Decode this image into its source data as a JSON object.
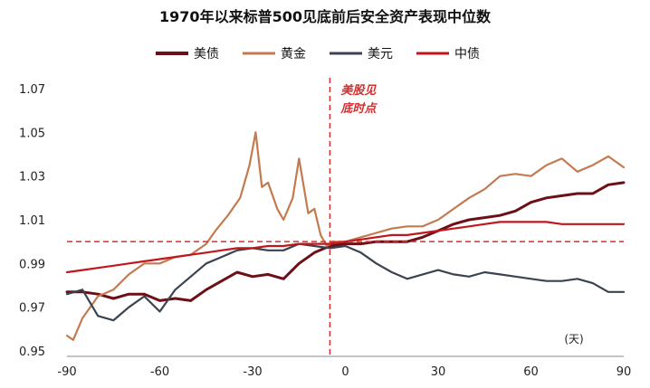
{
  "chart_data": {
    "type": "line",
    "title": "1970年以来标普500见底前后安全资产表现中位数",
    "x_tick_labels": [
      "-90",
      "-60",
      "-30",
      "0",
      "30",
      "60",
      "90"
    ],
    "y_tick_labels": [
      "0.95",
      "0.97",
      "0.99",
      "1.01",
      "1.03",
      "1.05",
      "1.07"
    ],
    "xlim": [
      -90,
      90
    ],
    "ylim": [
      0.95,
      1.07
    ],
    "annotation": {
      "line1": "美股见",
      "line2": "底时点",
      "x": -5
    },
    "reference_y": 1.0,
    "unit_label": "(天)",
    "legend_position": "top",
    "series": [
      {
        "name": "美债",
        "color": "#6d0f17",
        "x": [
          -90,
          -85,
          -80,
          -75,
          -70,
          -65,
          -60,
          -55,
          -50,
          -45,
          -40,
          -35,
          -30,
          -25,
          -20,
          -15,
          -10,
          -5,
          0,
          5,
          10,
          15,
          20,
          25,
          30,
          35,
          40,
          45,
          50,
          55,
          60,
          65,
          70,
          75,
          80,
          85,
          90
        ],
        "y": [
          0.977,
          0.977,
          0.976,
          0.974,
          0.976,
          0.976,
          0.973,
          0.974,
          0.973,
          0.978,
          0.982,
          0.986,
          0.984,
          0.985,
          0.983,
          0.99,
          0.995,
          0.998,
          0.999,
          0.999,
          1.0,
          1.0,
          1.0,
          1.002,
          1.005,
          1.008,
          1.01,
          1.011,
          1.012,
          1.014,
          1.018,
          1.02,
          1.021,
          1.022,
          1.022,
          1.026,
          1.027
        ]
      },
      {
        "name": "黄金",
        "color": "#c47a4f",
        "x": [
          -90,
          -88,
          -85,
          -80,
          -75,
          -70,
          -65,
          -60,
          -55,
          -50,
          -45,
          -42,
          -38,
          -34,
          -31,
          -29,
          -27,
          -25,
          -22,
          -20,
          -17,
          -15,
          -12,
          -10,
          -8,
          -6,
          -4,
          0,
          5,
          10,
          15,
          20,
          25,
          30,
          35,
          40,
          45,
          50,
          55,
          60,
          65,
          70,
          75,
          80,
          85,
          90
        ],
        "y": [
          0.957,
          0.955,
          0.965,
          0.975,
          0.978,
          0.985,
          0.99,
          0.99,
          0.993,
          0.994,
          0.999,
          1.005,
          1.012,
          1.02,
          1.035,
          1.05,
          1.025,
          1.027,
          1.015,
          1.01,
          1.02,
          1.038,
          1.013,
          1.015,
          1.003,
          0.998,
          1.0,
          1.0,
          1.002,
          1.004,
          1.006,
          1.007,
          1.007,
          1.01,
          1.015,
          1.02,
          1.024,
          1.03,
          1.031,
          1.03,
          1.035,
          1.038,
          1.032,
          1.035,
          1.039,
          1.034
        ]
      },
      {
        "name": "美元",
        "color": "#3a4450",
        "x": [
          -90,
          -85,
          -80,
          -75,
          -70,
          -65,
          -60,
          -55,
          -50,
          -45,
          -40,
          -35,
          -30,
          -25,
          -20,
          -15,
          -10,
          -5,
          0,
          5,
          10,
          15,
          20,
          25,
          30,
          35,
          40,
          45,
          50,
          55,
          60,
          65,
          70,
          75,
          80,
          85,
          90
        ],
        "y": [
          0.976,
          0.978,
          0.966,
          0.964,
          0.97,
          0.975,
          0.968,
          0.978,
          0.984,
          0.99,
          0.993,
          0.996,
          0.997,
          0.996,
          0.996,
          0.999,
          0.998,
          0.997,
          0.998,
          0.995,
          0.99,
          0.986,
          0.983,
          0.985,
          0.987,
          0.985,
          0.984,
          0.986,
          0.985,
          0.984,
          0.983,
          0.982,
          0.982,
          0.983,
          0.981,
          0.977,
          0.977
        ]
      },
      {
        "name": "中债",
        "color": "#c0171d",
        "x": [
          -90,
          -85,
          -80,
          -75,
          -70,
          -65,
          -60,
          -55,
          -50,
          -45,
          -40,
          -35,
          -30,
          -25,
          -20,
          -15,
          -10,
          -5,
          0,
          5,
          10,
          15,
          20,
          25,
          30,
          35,
          40,
          45,
          50,
          55,
          60,
          65,
          70,
          75,
          80,
          85,
          90
        ],
        "y": [
          0.986,
          0.987,
          0.988,
          0.989,
          0.99,
          0.991,
          0.992,
          0.993,
          0.994,
          0.995,
          0.996,
          0.997,
          0.997,
          0.998,
          0.998,
          0.999,
          0.999,
          0.999,
          1.0,
          1.001,
          1.002,
          1.003,
          1.003,
          1.004,
          1.005,
          1.006,
          1.007,
          1.008,
          1.009,
          1.009,
          1.009,
          1.009,
          1.008,
          1.008,
          1.008,
          1.008,
          1.008
        ]
      }
    ]
  }
}
